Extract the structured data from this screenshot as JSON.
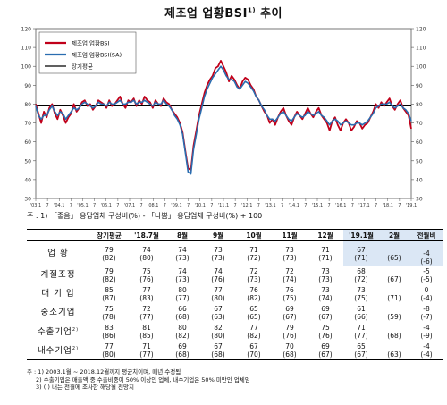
{
  "title": "제조업 업황BSI",
  "title_sup": "1)",
  "chart_data": {
    "type": "line",
    "ylim": [
      30,
      120
    ],
    "y_ticks": [
      30,
      40,
      50,
      60,
      70,
      80,
      90,
      100,
      110,
      120
    ],
    "grid": false,
    "legend": "top-left",
    "x_tick_labels": [
      "'03.1",
      "7",
      "'04.1",
      "7",
      "'05.1",
      "7",
      "'06.1",
      "7",
      "'07.1",
      "7",
      "'08.1",
      "7",
      "'09.1",
      "7",
      "'10.1",
      "7",
      "'11.1",
      "7",
      "'12.1",
      "7",
      "'13.1",
      "7",
      "'14.1",
      "7",
      "'15.1",
      "7",
      "'16.1",
      "7",
      "'17.1",
      "7",
      "'18.1",
      "7",
      "'19.1"
    ],
    "series": [
      {
        "name": "제조업 업황BSI",
        "color": "#c0001a",
        "values": [
          80,
          75,
          70,
          76,
          73,
          78,
          80,
          75,
          72,
          77,
          74,
          70,
          73,
          75,
          80,
          76,
          78,
          81,
          82,
          79,
          80,
          77,
          79,
          82,
          81,
          80,
          78,
          82,
          79,
          80,
          82,
          84,
          80,
          78,
          82,
          81,
          83,
          79,
          82,
          80,
          84,
          82,
          81,
          78,
          82,
          80,
          79,
          83,
          81,
          80,
          77,
          75,
          73,
          70,
          65,
          55,
          46,
          45,
          58,
          66,
          74,
          80,
          86,
          90,
          93,
          95,
          99,
          100,
          103,
          100,
          97,
          92,
          95,
          93,
          90,
          88,
          92,
          94,
          93,
          90,
          88,
          84,
          82,
          79,
          76,
          74,
          70,
          72,
          69,
          73,
          76,
          78,
          74,
          71,
          69,
          73,
          76,
          74,
          72,
          75,
          78,
          75,
          73,
          76,
          78,
          74,
          72,
          70,
          66,
          71,
          73,
          69,
          66,
          70,
          72,
          70,
          66,
          68,
          71,
          70,
          67,
          69,
          70,
          73,
          76,
          80,
          78,
          81,
          79,
          81,
          83,
          79,
          77,
          80,
          82,
          78,
          76,
          74,
          67
        ]
      },
      {
        "name": "제조업 업황BSI(SA)",
        "color": "#2a6db0",
        "values": [
          79,
          74,
          72,
          74,
          74,
          77,
          79,
          76,
          74,
          76,
          75,
          72,
          74,
          76,
          78,
          77,
          78,
          80,
          81,
          80,
          79,
          78,
          79,
          81,
          80,
          80,
          79,
          81,
          80,
          80,
          81,
          82,
          80,
          80,
          81,
          81,
          82,
          80,
          81,
          81,
          82,
          81,
          80,
          79,
          81,
          80,
          80,
          82,
          80,
          79,
          77,
          74,
          72,
          69,
          64,
          54,
          44,
          43,
          56,
          64,
          72,
          78,
          84,
          88,
          91,
          94,
          96,
          98,
          100,
          98,
          95,
          93,
          93,
          92,
          89,
          88,
          90,
          92,
          91,
          89,
          87,
          84,
          82,
          79,
          77,
          74,
          72,
          72,
          71,
          73,
          75,
          76,
          74,
          72,
          71,
          73,
          75,
          74,
          73,
          74,
          76,
          75,
          74,
          75,
          76,
          74,
          73,
          71,
          69,
          71,
          72,
          71,
          69,
          70,
          71,
          70,
          69,
          69,
          70,
          70,
          69,
          70,
          71,
          73,
          75,
          78,
          79,
          80,
          80,
          80,
          81,
          79,
          78,
          79,
          80,
          78,
          77,
          75,
          71
        ]
      },
      {
        "name": "장기평균",
        "color": "#000000",
        "values": [
          79,
          79
        ]
      }
    ]
  },
  "axis_note": "주 : 1) 「좋음」 응답업체 구성비(%) - 「나쁨」 응답업체 구성비(%) + 100",
  "table": {
    "columns": [
      "장기평균",
      "'18.7월",
      "8월",
      "9월",
      "10월",
      "11월",
      "12월",
      "'19.1월",
      "2월",
      "전월비"
    ],
    "rows": [
      {
        "label": "업 황",
        "sup": "",
        "top": [
          "79",
          "74",
          "74",
          "73",
          "71",
          "73",
          "71",
          "67",
          "",
          ""
        ],
        "bot": [
          "(82)",
          "(80)",
          "(73)",
          "(73)",
          "(72)",
          "(73)",
          "(71)",
          "(71)",
          "(65)",
          "-4"
        ],
        "extra": "(-6)"
      },
      {
        "label": "계절조정",
        "sup": "",
        "top": [
          "79",
          "75",
          "74",
          "74",
          "72",
          "72",
          "73",
          "68",
          "",
          "-5"
        ],
        "bot": [
          "(82)",
          "(76)",
          "(73)",
          "(76)",
          "(73)",
          "(74)",
          "(73)",
          "(72)",
          "(67)",
          "(-5)"
        ]
      },
      {
        "label": "대 기 업",
        "sup": "",
        "top": [
          "85",
          "77",
          "80",
          "77",
          "76",
          "76",
          "73",
          "73",
          "",
          "0"
        ],
        "bot": [
          "(87)",
          "(83)",
          "(77)",
          "(80)",
          "(82)",
          "(75)",
          "(74)",
          "(75)",
          "(71)",
          "(-4)"
        ]
      },
      {
        "label": "중소기업",
        "sup": "",
        "top": [
          "75",
          "72",
          "66",
          "67",
          "65",
          "69",
          "69",
          "61",
          "",
          "-8"
        ],
        "bot": [
          "(78)",
          "(77)",
          "(68)",
          "(63)",
          "(65)",
          "(67)",
          "(67)",
          "(66)",
          "(59)",
          "(-7)"
        ]
      },
      {
        "label": "수출기업",
        "sup": "2)",
        "top": [
          "83",
          "81",
          "80",
          "82",
          "77",
          "79",
          "75",
          "71",
          "",
          "-4"
        ],
        "bot": [
          "(86)",
          "(85)",
          "(82)",
          "(80)",
          "(82)",
          "(76)",
          "(76)",
          "(77)",
          "(68)",
          "(-9)"
        ]
      },
      {
        "label": "내수기업",
        "sup": "2)",
        "top": [
          "77",
          "71",
          "69",
          "67",
          "67",
          "70",
          "69",
          "65",
          "",
          "-4"
        ],
        "bot": [
          "(80)",
          "(77)",
          "(68)",
          "(68)",
          "(70)",
          "(68)",
          "(67)",
          "(67)",
          "(63)",
          "(-4)"
        ]
      }
    ]
  },
  "notes": [
    "주 : 1) 2003.1월 ~ 2018.12월까지 평균치이며, 매년 수정됨",
    "2) 수출기업은 매출액 중 수출비중이 50% 이상인 업체, 내수기업은 50% 미만인 업체임",
    "3) ( ) 내는 전월에 조사한 해당월 전망치"
  ]
}
